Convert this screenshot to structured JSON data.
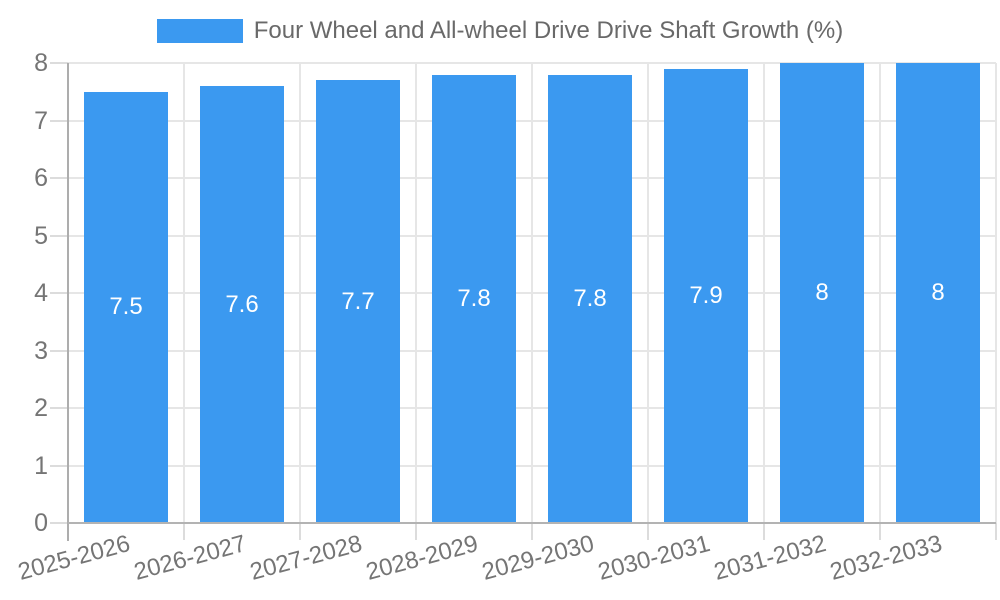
{
  "chart": {
    "legend_label": "Four Wheel and All-wheel Drive Drive Shaft Growth (%)"
  },
  "chart_data": {
    "type": "bar",
    "title": "Four Wheel and All-wheel Drive Drive Shaft Growth (%)",
    "categories": [
      "2025-2026",
      "2026-2027",
      "2027-2028",
      "2028-2029",
      "2029-2030",
      "2030-2031",
      "2031-2032",
      "2032-2033"
    ],
    "values": [
      7.5,
      7.6,
      7.7,
      7.8,
      7.8,
      7.9,
      8,
      8
    ],
    "data_labels": [
      "7.5",
      "7.6",
      "7.7",
      "7.8",
      "7.8",
      "7.9",
      "8",
      "8"
    ],
    "xlabel": "",
    "ylabel": "",
    "ylim": [
      0,
      8
    ],
    "yticks": [
      0,
      1,
      2,
      3,
      4,
      5,
      6,
      7,
      8
    ],
    "grid": true,
    "legend_position": "top",
    "bar_color": "#3B99F0",
    "data_label_color": "#FFFFFF",
    "grid_color": "#E6E6E6",
    "tick_color": "#DCDCDC",
    "axis_color": "#ADADAD",
    "label_color": "#757575",
    "title_color": "#696969",
    "background": "#FFFFFF",
    "x_label_rotation_deg": -15
  }
}
